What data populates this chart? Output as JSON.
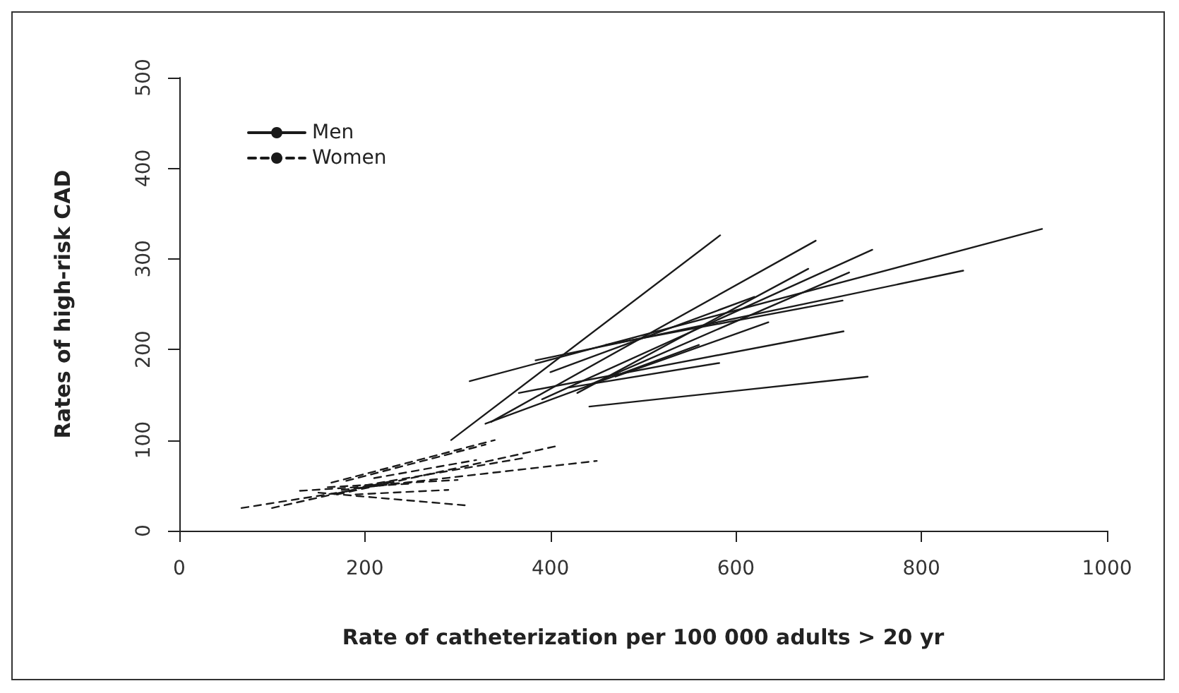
{
  "chart_data": {
    "type": "line",
    "xlabel": "Rate of catheterization per 100 000 adults > 20 yr",
    "ylabel": "Rates of high-risk CAD",
    "xlim": [
      0,
      1000
    ],
    "xticks": [
      0,
      200,
      400,
      600,
      800,
      1000
    ],
    "ylim": [
      0,
      500
    ],
    "yticks": [
      0,
      100,
      200,
      300,
      400,
      500
    ],
    "grid": false,
    "legend": "top left",
    "marker": "none",
    "series": [
      {
        "name": "Men",
        "color": "#1a1a1a",
        "line_style": "solid",
        "x": [
          293,
          583
        ],
        "values": [
          100,
          326
        ]
      },
      {
        "color": "#1a1a1a",
        "line_style": "solid",
        "x": [
          313,
          930
        ],
        "values": [
          165,
          333
        ]
      },
      {
        "color": "#1a1a1a",
        "line_style": "solid",
        "x": [
          384,
          845
        ],
        "values": [
          188,
          287
        ]
      },
      {
        "color": "#1a1a1a",
        "line_style": "solid",
        "x": [
          336,
          686
        ],
        "values": [
          120,
          320
        ]
      },
      {
        "color": "#1a1a1a",
        "line_style": "solid",
        "x": [
          391,
          747
        ],
        "values": [
          145,
          310
        ]
      },
      {
        "color": "#1a1a1a",
        "line_style": "solid",
        "x": [
          429,
          678
        ],
        "values": [
          152,
          289
        ]
      },
      {
        "color": "#1a1a1a",
        "line_style": "solid",
        "x": [
          440,
          722
        ],
        "values": [
          160,
          285
        ]
      },
      {
        "color": "#1a1a1a",
        "line_style": "solid",
        "x": [
          366,
          716
        ],
        "values": [
          152,
          220
        ]
      },
      {
        "color": "#1a1a1a",
        "line_style": "solid",
        "x": [
          442,
          742
        ],
        "values": [
          137,
          170
        ]
      },
      {
        "color": "#1a1a1a",
        "line_style": "solid",
        "x": [
          420,
          582
        ],
        "values": [
          158,
          185
        ]
      },
      {
        "color": "#1a1a1a",
        "line_style": "solid",
        "x": [
          460,
          715
        ],
        "values": [
          205,
          254
        ]
      },
      {
        "color": "#1a1a1a",
        "line_style": "solid",
        "x": [
          400,
          620
        ],
        "values": [
          175,
          258
        ]
      },
      {
        "color": "#1a1a1a",
        "line_style": "solid",
        "x": [
          470,
          635
        ],
        "values": [
          170,
          230
        ]
      },
      {
        "color": "#1a1a1a",
        "line_style": "solid",
        "x": [
          330,
          560
        ],
        "values": [
          118,
          205
        ]
      },
      {
        "name": "Women",
        "color": "#1a1a1a",
        "line_style": "dashed",
        "x": [
          67,
          190
        ],
        "values": [
          25,
          45
        ]
      },
      {
        "color": "#1a1a1a",
        "line_style": "dashed",
        "x": [
          100,
          230
        ],
        "values": [
          25,
          55
        ]
      },
      {
        "color": "#1a1a1a",
        "line_style": "dashed",
        "x": [
          150,
          308
        ],
        "values": [
          42,
          28
        ]
      },
      {
        "color": "#1a1a1a",
        "line_style": "dashed",
        "x": [
          130,
          250
        ],
        "values": [
          44,
          52
        ]
      },
      {
        "color": "#1a1a1a",
        "line_style": "dashed",
        "x": [
          164,
          340
        ],
        "values": [
          53,
          100
        ]
      },
      {
        "color": "#1a1a1a",
        "line_style": "dashed",
        "x": [
          180,
          330
        ],
        "values": [
          55,
          95
        ]
      },
      {
        "color": "#1a1a1a",
        "line_style": "dashed",
        "x": [
          170,
          405
        ],
        "values": [
          40,
          93
        ]
      },
      {
        "color": "#1a1a1a",
        "line_style": "dashed",
        "x": [
          175,
          450
        ],
        "values": [
          45,
          77
        ]
      },
      {
        "color": "#1a1a1a",
        "line_style": "dashed",
        "x": [
          190,
          290
        ],
        "values": [
          40,
          45
        ]
      },
      {
        "color": "#1a1a1a",
        "line_style": "dashed",
        "x": [
          200,
          370
        ],
        "values": [
          50,
          80
        ]
      },
      {
        "color": "#1a1a1a",
        "line_style": "dashed",
        "x": [
          160,
          300
        ],
        "values": [
          48,
          56
        ]
      },
      {
        "color": "#1a1a1a",
        "line_style": "dashed",
        "x": [
          210,
          320
        ],
        "values": [
          58,
          78
        ]
      }
    ]
  }
}
